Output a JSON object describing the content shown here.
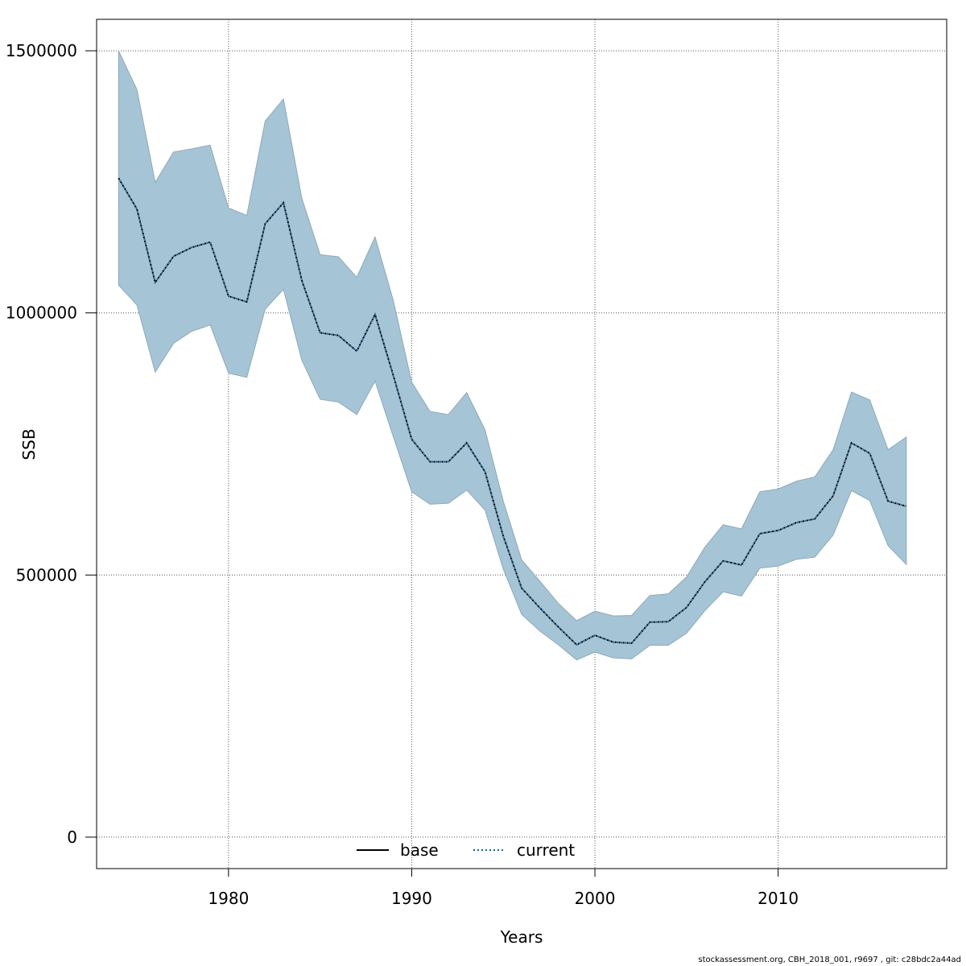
{
  "chart_data": {
    "type": "line",
    "xlabel": "Years",
    "ylabel": "SSB",
    "xlim": [
      1972.8,
      2019.2
    ],
    "ylim": [
      -60000,
      1560000
    ],
    "x_ticks": [
      1980,
      1990,
      2000,
      2010
    ],
    "y_ticks": [
      0,
      500000,
      1000000,
      1500000
    ],
    "x_tick_labels": [
      "1980",
      "1990",
      "2000",
      "2010"
    ],
    "y_tick_labels": [
      "0",
      "500000",
      "1000000",
      "1500000"
    ],
    "grid": true,
    "legend_position": "bottom-center",
    "x": [
      1974,
      1975,
      1976,
      1977,
      1978,
      1979,
      1980,
      1981,
      1982,
      1983,
      1984,
      1985,
      1986,
      1987,
      1988,
      1989,
      1990,
      1991,
      1992,
      1993,
      1994,
      1995,
      1996,
      1997,
      1998,
      1999,
      2000,
      2001,
      2002,
      2003,
      2004,
      2005,
      2006,
      2007,
      2008,
      2009,
      2010,
      2011,
      2012,
      2013,
      2014,
      2015,
      2016,
      2017
    ],
    "series": [
      {
        "name": "base",
        "style": "solid",
        "color": "#000000",
        "values": [
          1257000,
          1198000,
          1058000,
          1108000,
          1125000,
          1135000,
          1032000,
          1021000,
          1170000,
          1210000,
          1062000,
          962000,
          957000,
          927000,
          997000,
          880000,
          759000,
          716000,
          716000,
          752000,
          697000,
          574000,
          475000,
          437000,
          401000,
          367000,
          385000,
          372000,
          370000,
          410000,
          411000,
          438000,
          487000,
          527000,
          519000,
          579000,
          585000,
          600000,
          607000,
          651000,
          752000,
          732000,
          641000,
          631000
        ]
      },
      {
        "name": "current",
        "style": "dotted",
        "color": "#1f5f8b",
        "values": [
          1257000,
          1198000,
          1058000,
          1108000,
          1125000,
          1135000,
          1032000,
          1021000,
          1170000,
          1210000,
          1062000,
          962000,
          957000,
          927000,
          997000,
          880000,
          759000,
          716000,
          716000,
          752000,
          697000,
          574000,
          475000,
          437000,
          401000,
          367000,
          385000,
          372000,
          370000,
          410000,
          411000,
          438000,
          487000,
          527000,
          519000,
          579000,
          585000,
          600000,
          607000,
          651000,
          752000,
          732000,
          641000,
          631000
        ]
      }
    ],
    "confidence_band": {
      "fill": "#a5c4d6",
      "lower": [
        1053000,
        1015000,
        887000,
        942000,
        965000,
        977000,
        885000,
        877000,
        1007000,
        1045000,
        910000,
        835000,
        830000,
        806000,
        870000,
        763000,
        659000,
        635000,
        637000,
        662000,
        624000,
        511000,
        425000,
        393000,
        367000,
        338000,
        353000,
        342000,
        340000,
        366000,
        366000,
        389000,
        432000,
        468000,
        460000,
        513000,
        517000,
        530000,
        534000,
        576000,
        661000,
        642000,
        556000,
        520000
      ],
      "upper": [
        1500000,
        1426000,
        1249000,
        1307000,
        1313000,
        1320000,
        1200000,
        1186000,
        1366000,
        1408000,
        1219000,
        1111000,
        1107000,
        1068000,
        1145000,
        1023000,
        868000,
        812000,
        806000,
        848000,
        777000,
        641000,
        529000,
        488000,
        446000,
        413000,
        431000,
        422000,
        423000,
        461000,
        464000,
        496000,
        553000,
        596000,
        588000,
        659000,
        664000,
        679000,
        687000,
        739000,
        849000,
        834000,
        739000,
        763000
      ]
    }
  },
  "footer": {
    "note": "stockassessment.org, CBH_2018_001, r9697 , git: c28bdc2a44ad"
  }
}
